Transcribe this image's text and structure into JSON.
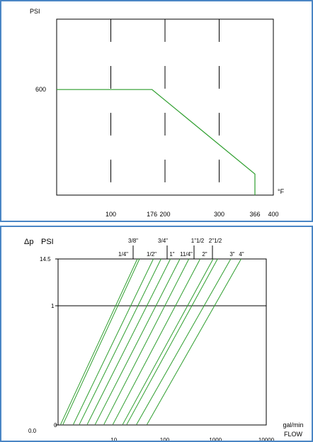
{
  "chart_data": [
    {
      "type": "line",
      "title": "",
      "ylabel": "PSI",
      "xlabel": "°F",
      "x_ticks": [
        "100",
        "176",
        "200",
        "300",
        "366",
        "400"
      ],
      "y_ticks": [
        "600"
      ],
      "xlim": [
        0,
        400
      ],
      "grid": "vertical dashed at 100, 200, 300",
      "series": [
        {
          "x": [
            0,
            176,
            366,
            366
          ],
          "y": [
            600,
            600,
            120,
            0
          ],
          "color": "#2e9e2e"
        }
      ]
    },
    {
      "type": "line",
      "title": "",
      "ylabel_delta": "Δp",
      "ylabel": "PSI",
      "xlabel": "gal/min",
      "xlabel2": "FLOW",
      "x_scale": "log",
      "x_ticks": [
        "10",
        "100",
        "1000",
        "10000"
      ],
      "y_ticks": [
        "14.5",
        "1",
        "0"
      ],
      "origin_label": "0.0",
      "size_labels": [
        {
          "text": "3/8\"",
          "row": "upper"
        },
        {
          "text": "3/4\"",
          "row": "upper"
        },
        {
          "text": "1\"1/2",
          "row": "upper"
        },
        {
          "text": "2\"1/2",
          "row": "upper"
        },
        {
          "text": "1/4\"",
          "row": "lower"
        },
        {
          "text": "1/2\"",
          "row": "lower"
        },
        {
          "text": "1\"",
          "row": "lower"
        },
        {
          "text": "11/4\"",
          "row": "lower"
        },
        {
          "text": "2\"",
          "row": "lower"
        },
        {
          "text": "3\"",
          "row": "lower"
        },
        {
          "text": "4\"",
          "row": "lower"
        }
      ],
      "series": [
        {
          "x": [
            0.9,
            29
          ],
          "y": [
            0.05,
            14.5
          ]
        },
        {
          "x": [
            1.0,
            32
          ],
          "y": [
            0.05,
            14.5
          ]
        },
        {
          "x": [
            1.6,
            60
          ],
          "y": [
            0.05,
            14.5
          ]
        },
        {
          "x": [
            2.1,
            85
          ],
          "y": [
            0.05,
            14.5
          ]
        },
        {
          "x": [
            3.0,
            130
          ],
          "y": [
            0.05,
            14.5
          ]
        },
        {
          "x": [
            4.3,
            200
          ],
          "y": [
            0.05,
            14.5
          ]
        },
        {
          "x": [
            6.4,
            300
          ],
          "y": [
            0.05,
            14.5
          ]
        },
        {
          "x": [
            9.6,
            500
          ],
          "y": [
            0.05,
            14.5
          ]
        },
        {
          "x": [
            15,
            900
          ],
          "y": [
            0.05,
            14.5
          ]
        },
        {
          "x": [
            18,
            1100
          ],
          "y": [
            0.05,
            14.5
          ]
        },
        {
          "x": [
            28,
            2000
          ],
          "y": [
            0.05,
            14.5
          ]
        },
        {
          "x": [
            45,
            3200
          ],
          "y": [
            0.05,
            14.5
          ]
        }
      ],
      "line_color": "#2e9e2e"
    }
  ]
}
